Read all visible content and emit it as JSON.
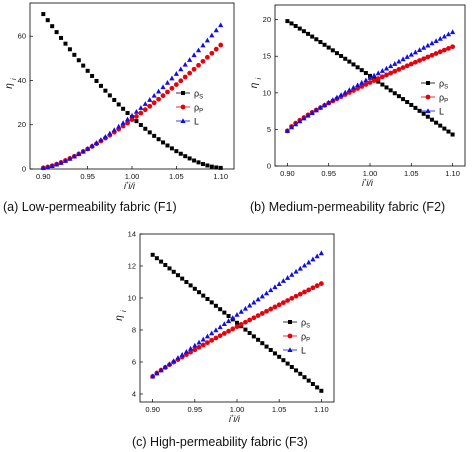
{
  "panels": [
    {
      "caption": "(a) Low-permeability fabric (F1)",
      "ylabel": "η",
      "ylabel_sub": "i",
      "xlabel": "i *i / i",
      "xlabel_parts": [
        "i",
        "*",
        "i",
        "/i"
      ],
      "legend": [
        {
          "base": "ρ",
          "sub": "S",
          "marker": "square",
          "color": "#000000"
        },
        {
          "base": "ρ",
          "sub": "P",
          "marker": "circle",
          "color": "#e8000b"
        },
        {
          "base": "L",
          "sub": "",
          "marker": "triangle",
          "color": "#1010e6"
        }
      ]
    },
    {
      "caption": "(b) Medium-permeability fabric (F2)",
      "ylabel": "η",
      "ylabel_sub": "i",
      "xlabel_parts": [
        "i",
        "*",
        "i",
        "/i"
      ],
      "legend": [
        {
          "base": "ρ",
          "sub": "S",
          "marker": "square",
          "color": "#000000"
        },
        {
          "base": "ρ",
          "sub": "P",
          "marker": "circle",
          "color": "#e8000b"
        },
        {
          "base": "L",
          "sub": "",
          "marker": "triangle",
          "color": "#1010e6"
        }
      ]
    },
    {
      "caption": "(c) High-permeability fabric (F3)",
      "ylabel": "η",
      "ylabel_sub": "i",
      "xlabel_parts": [
        "i",
        "*",
        "i",
        "/i"
      ],
      "legend": [
        {
          "base": "ρ",
          "sub": "S",
          "marker": "square",
          "color": "#000000"
        },
        {
          "base": "ρ",
          "sub": "P",
          "marker": "circle",
          "color": "#e8000b"
        },
        {
          "base": "L",
          "sub": "",
          "marker": "triangle",
          "color": "#1010e6"
        }
      ]
    }
  ],
  "chart_data": [
    {
      "type": "scatter",
      "x": {
        "start": 0.9,
        "end": 1.1,
        "points": 41
      },
      "xlim": [
        0.885,
        1.115
      ],
      "ylim": [
        0,
        75
      ],
      "xticks": [
        "0.90",
        "0.95",
        "1.00",
        "1.05",
        "1.10"
      ],
      "yticks": [
        "0",
        "20",
        "40",
        "60"
      ],
      "ytick_values": [
        0,
        20,
        40,
        60
      ],
      "series": [
        {
          "name": "ρS",
          "start": 70,
          "end": 0.5,
          "shape": "decreasing-convex",
          "exponent": 1.6,
          "color": "#000000",
          "marker": "square"
        },
        {
          "name": "ρP",
          "start": 0.5,
          "end": 56,
          "shape": "increasing",
          "exponent": 1.35,
          "color": "#e8000b",
          "marker": "circle"
        },
        {
          "name": "L",
          "start": 0.5,
          "end": 65,
          "shape": "increasing",
          "exponent": 1.45,
          "color": "#1010e6",
          "marker": "triangle"
        }
      ],
      "legend_position": "right-middle"
    },
    {
      "type": "scatter",
      "x": {
        "start": 0.9,
        "end": 1.1,
        "points": 41
      },
      "xlim": [
        0.885,
        1.115
      ],
      "ylim": [
        0,
        22
      ],
      "xticks": [
        "0.90",
        "0.95",
        "1.00",
        "1.05",
        "1.10"
      ],
      "yticks": [
        "0",
        "5",
        "10",
        "15",
        "20"
      ],
      "ytick_values": [
        0,
        5,
        10,
        15,
        20
      ],
      "series": [
        {
          "name": "ρS",
          "start": 19.8,
          "end": 4.3,
          "shape": "decreasing",
          "exponent": 1.05,
          "color": "#000000",
          "marker": "square"
        },
        {
          "name": "ρP",
          "start": 4.8,
          "end": 16.3,
          "shape": "increasing-concave",
          "exponent": 0.8,
          "color": "#e8000b",
          "marker": "circle"
        },
        {
          "name": "L",
          "start": 4.8,
          "end": 18.3,
          "shape": "increasing",
          "exponent": 0.9,
          "color": "#1010e6",
          "marker": "triangle"
        }
      ],
      "legend_position": "right-middle"
    },
    {
      "type": "scatter",
      "x": {
        "start": 0.9,
        "end": 1.1,
        "points": 41
      },
      "xlim": [
        0.885,
        1.115
      ],
      "ylim": [
        3.5,
        14
      ],
      "xticks": [
        "0.90",
        "0.95",
        "1.00",
        "1.05",
        "1.10"
      ],
      "yticks": [
        "4",
        "6",
        "8",
        "10",
        "12",
        "14"
      ],
      "ytick_values": [
        4,
        6,
        8,
        10,
        12,
        14
      ],
      "series": [
        {
          "name": "ρS",
          "start": 12.7,
          "end": 4.2,
          "shape": "decreasing",
          "exponent": 1.0,
          "color": "#000000",
          "marker": "square"
        },
        {
          "name": "ρP",
          "start": 5.1,
          "end": 10.9,
          "shape": "increasing",
          "exponent": 0.9,
          "color": "#e8000b",
          "marker": "circle"
        },
        {
          "name": "L",
          "start": 5.1,
          "end": 12.8,
          "shape": "increasing",
          "exponent": 1.0,
          "color": "#1010e6",
          "marker": "triangle"
        }
      ],
      "legend_position": "right-middle"
    }
  ]
}
